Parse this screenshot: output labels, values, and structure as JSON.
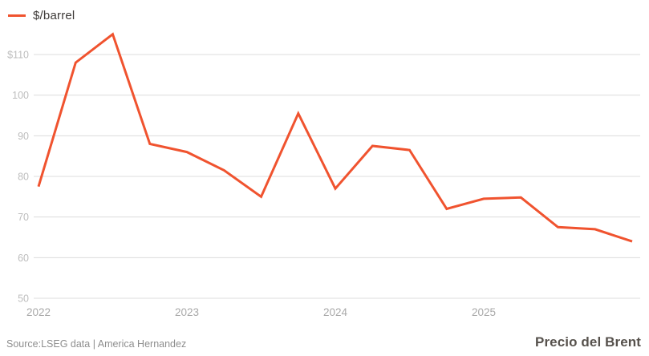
{
  "colors": {
    "background": "#ffffff",
    "line": "#f0532f",
    "grid": "#dcdcdc",
    "y_tick_text": "#bdbdbd",
    "x_tick_text": "#a9a9a9",
    "legend_text": "#3e3a38",
    "source_text": "#8e8e8e",
    "title_text": "#56514c"
  },
  "legend": {
    "label": "$/barrel"
  },
  "footer": {
    "source": "Source:LSEG data | America Hernandez",
    "title": "Precio del Brent"
  },
  "chart_data": {
    "type": "line",
    "title": "Precio del Brent",
    "subtitle": "",
    "series_name": "$/barrel",
    "x": [
      "2022-Q1",
      "2022-Q2",
      "2022-Q3",
      "2022-Q4",
      "2023-Q1",
      "2023-Q2",
      "2023-Q3",
      "2023-Q4",
      "2024-Q1",
      "2024-Q2",
      "2024-Q3",
      "2024-Q4",
      "2025-Q1",
      "2025-Q2",
      "2025-Q3",
      "2025-Q4",
      "2026-Q1"
    ],
    "values": [
      77.5,
      108,
      115,
      88,
      86,
      81.5,
      75,
      95.5,
      77,
      87.5,
      86.5,
      72,
      74.5,
      74.8,
      67.5,
      67,
      64
    ],
    "x_tick_labels": [
      "2022",
      "2023",
      "2024",
      "2025"
    ],
    "y_ticks": [
      110,
      100,
      90,
      80,
      70,
      60,
      50
    ],
    "y_tick_labels": [
      "$110",
      "100",
      "90",
      "80",
      "70",
      "60",
      "50"
    ],
    "ylim": [
      50,
      116
    ],
    "xlabel": "",
    "ylabel": "$/barrel",
    "grid": "horizontal-only",
    "legend_position": "top-left"
  }
}
